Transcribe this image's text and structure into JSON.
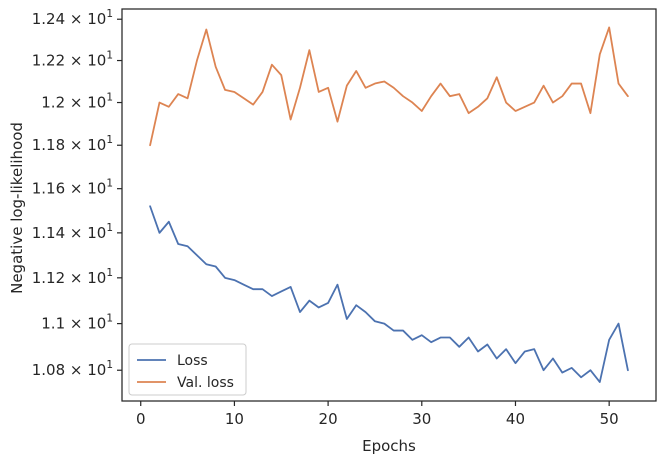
{
  "chart_data": {
    "type": "line",
    "xlabel": "Epochs",
    "ylabel": "Negative log-likelihood",
    "xlim": [
      -2,
      55
    ],
    "ylim": [
      10.67,
      12.45
    ],
    "y_scale": "log",
    "x_ticks": [
      {
        "value": 0,
        "label": "0"
      },
      {
        "value": 10,
        "label": "10"
      },
      {
        "value": 20,
        "label": "20"
      },
      {
        "value": 30,
        "label": "30"
      },
      {
        "value": 40,
        "label": "40"
      },
      {
        "value": 50,
        "label": "50"
      }
    ],
    "y_ticks": [
      {
        "value": 10.8,
        "mant": "1.08",
        "exp": "1"
      },
      {
        "value": 11.0,
        "mant": "1.1",
        "exp": "1"
      },
      {
        "value": 11.2,
        "mant": "1.12",
        "exp": "1"
      },
      {
        "value": 11.4,
        "mant": "1.14",
        "exp": "1"
      },
      {
        "value": 11.6,
        "mant": "1.16",
        "exp": "1"
      },
      {
        "value": 11.8,
        "mant": "1.18",
        "exp": "1"
      },
      {
        "value": 12.0,
        "mant": "1.2",
        "exp": "1"
      },
      {
        "value": 12.2,
        "mant": "1.22",
        "exp": "1"
      },
      {
        "value": 12.4,
        "mant": "1.24",
        "exp": "1"
      }
    ],
    "legend_position": "lower-left",
    "x": [
      1,
      2,
      3,
      4,
      5,
      6,
      7,
      8,
      9,
      10,
      11,
      12,
      13,
      14,
      15,
      16,
      17,
      18,
      19,
      20,
      21,
      22,
      23,
      24,
      25,
      26,
      27,
      28,
      29,
      30,
      31,
      32,
      33,
      34,
      35,
      36,
      37,
      38,
      39,
      40,
      41,
      42,
      43,
      44,
      45,
      46,
      47,
      48,
      49,
      50,
      51,
      52
    ],
    "series": [
      {
        "name": "Loss",
        "color": "#4c72b0",
        "values": [
          11.52,
          11.4,
          11.45,
          11.35,
          11.34,
          11.3,
          11.26,
          11.25,
          11.2,
          11.19,
          11.17,
          11.15,
          11.15,
          11.12,
          11.14,
          11.16,
          11.05,
          11.1,
          11.07,
          11.09,
          11.17,
          11.02,
          11.08,
          11.05,
          11.01,
          11.0,
          10.97,
          10.97,
          10.93,
          10.95,
          10.92,
          10.94,
          10.94,
          10.9,
          10.94,
          10.88,
          10.91,
          10.85,
          10.89,
          10.83,
          10.88,
          10.89,
          10.8,
          10.85,
          10.79,
          10.81,
          10.77,
          10.8,
          10.75,
          10.93,
          11.0,
          10.8
        ]
      },
      {
        "name": "Val. loss",
        "color": "#dd8452",
        "values": [
          11.8,
          12.0,
          11.98,
          12.04,
          12.02,
          12.2,
          12.35,
          12.17,
          12.06,
          12.05,
          12.02,
          11.99,
          12.05,
          12.18,
          12.13,
          11.92,
          12.07,
          12.25,
          12.05,
          12.07,
          11.91,
          12.08,
          12.15,
          12.07,
          12.09,
          12.1,
          12.07,
          12.03,
          12.0,
          11.96,
          12.03,
          12.09,
          12.03,
          12.04,
          11.95,
          11.98,
          12.02,
          12.12,
          12.0,
          11.96,
          11.98,
          12.0,
          12.08,
          12.0,
          12.03,
          12.09,
          12.09,
          11.95,
          12.23,
          12.36,
          12.09,
          12.03
        ]
      }
    ]
  }
}
